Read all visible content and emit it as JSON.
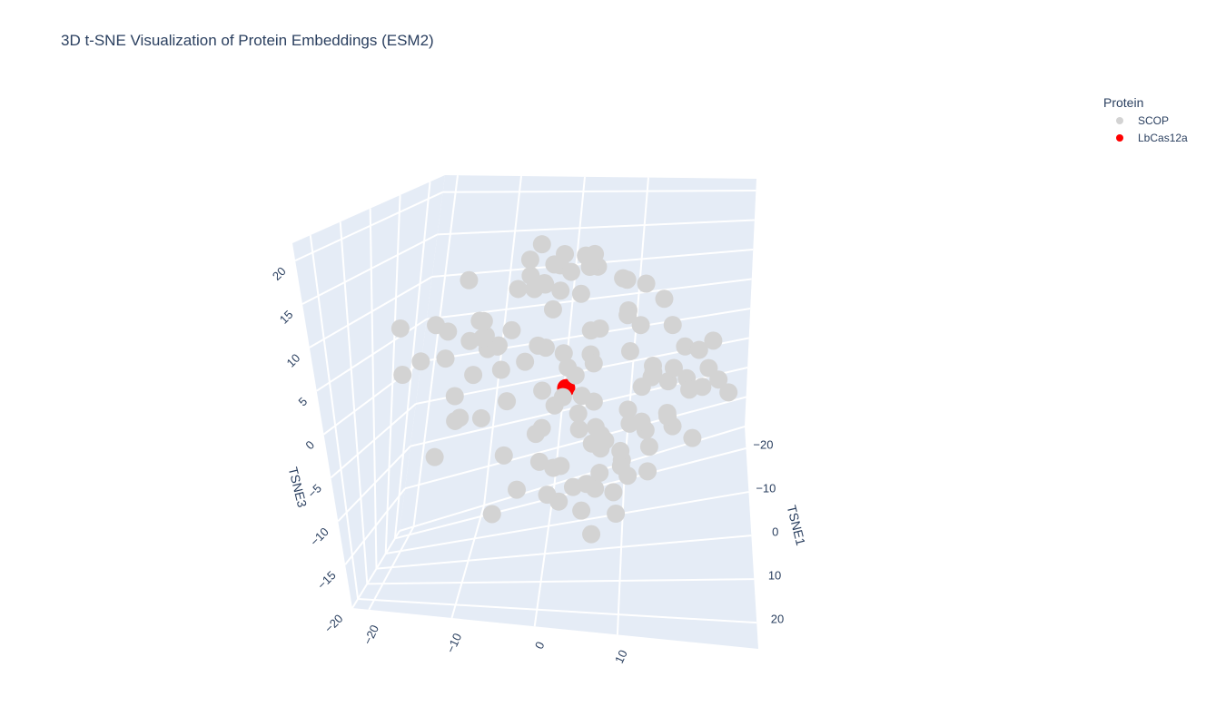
{
  "chart_data": {
    "type": "scatter3d",
    "title": "3D t-SNE Visualization of Protein Embeddings (ESM2)",
    "legend_title": "Protein",
    "xlabel": "TSNE1",
    "zlabel": "TSNE3",
    "xlim": [
      -25,
      26
    ],
    "ylim": [
      -22,
      27
    ],
    "zlim": [
      -20,
      22
    ],
    "xticks": [
      {
        "value": -20,
        "label": "−20"
      },
      {
        "value": -10,
        "label": "−10"
      },
      0,
      10,
      20
    ],
    "yticks": [
      {
        "value": -20,
        "label": "−20"
      },
      {
        "value": -10,
        "label": "−10"
      },
      0,
      10
    ],
    "zticks": [
      {
        "value": -20,
        "label": "−20"
      },
      {
        "value": -15,
        "label": "−15"
      },
      {
        "value": -10,
        "label": "−10"
      },
      {
        "value": -5,
        "label": "−5"
      },
      0,
      5,
      10,
      15,
      20
    ],
    "series": [
      {
        "name": "SCOP",
        "color": "#d3d3d3",
        "x": [
          0,
          5,
          -8,
          10,
          -3,
          12,
          -6,
          2,
          8,
          -12,
          4,
          -2,
          9,
          -10,
          6,
          1,
          -5,
          11,
          -7,
          3,
          7,
          -4,
          2,
          -9,
          10,
          -1,
          5,
          -12,
          3,
          8,
          -6,
          9,
          1,
          -3,
          12,
          4,
          -8,
          6,
          -2,
          10,
          2,
          -7,
          11,
          0,
          -10,
          5,
          8,
          -4,
          13,
          -1,
          -5,
          3,
          7,
          -11,
          1,
          9,
          -3,
          6,
          -9,
          4,
          10,
          -6,
          2,
          8,
          -2,
          -12,
          5,
          0,
          11,
          -4,
          3,
          -9,
          6,
          1,
          -7,
          12,
          -1,
          9,
          -5,
          2,
          8,
          -3,
          0,
          11,
          -8,
          4,
          7,
          -10,
          3,
          -6,
          -1,
          10,
          -5,
          2,
          9,
          -7,
          4,
          -2,
          12,
          6,
          5,
          -11,
          3,
          -4,
          8,
          0,
          -9,
          7,
          -3,
          10,
          1,
          6,
          -6,
          12,
          -2,
          3,
          9,
          -8,
          5,
          -10
        ],
        "y": [
          5,
          8,
          2,
          -3,
          12,
          15,
          0,
          6,
          10,
          -6,
          3,
          -1,
          9,
          14,
          18,
          7,
          -8,
          4,
          11,
          1,
          -10,
          -12,
          20,
          22,
          6,
          2,
          -4,
          16,
          13,
          9,
          0,
          5,
          -2,
          8,
          17,
          -7,
          10,
          3,
          12,
          -5,
          7,
          -14,
          -15,
          24,
          21,
          4,
          -9,
          14,
          1,
          6,
          11,
          -3,
          19,
          -11,
          8,
          2,
          15,
          -6,
          5,
          9,
          -13,
          23,
          0,
          10,
          -1,
          13,
          18,
          4,
          7,
          -8,
          3,
          16,
          -4,
          12,
          6,
          -2,
          20,
          9,
          1,
          14,
          -16,
          25,
          5,
          -12,
          11,
          8,
          -5,
          17,
          2,
          10,
          4,
          -9,
          13,
          6,
          -3,
          19,
          0,
          7,
          -6,
          15,
          8,
          1,
          22,
          -10,
          12,
          5,
          -1,
          10,
          3,
          18,
          -7,
          6,
          14,
          2,
          -14,
          9,
          21,
          -2,
          11,
          4
        ],
        "z": [
          2,
          6,
          -3,
          8,
          4,
          -6,
          12,
          0,
          -10,
          5,
          -8,
          14,
          10,
          -2,
          3,
          -12,
          6,
          16,
          -5,
          1,
          9,
          -4,
          2,
          -1,
          18,
          -14,
          7,
          -8,
          11,
          -3,
          4,
          -9,
          13,
          15,
          6,
          -2,
          -12,
          0,
          9,
          11,
          -6,
          3,
          10,
          1,
          -4,
          17,
          -1,
          -9,
          7,
          12,
          13,
          -11,
          5,
          0,
          -7,
          8,
          2,
          -13,
          15,
          -5,
          6,
          4,
          -8,
          10,
          16,
          -10,
          -3,
          3,
          -14,
          8,
          11,
          9,
          -6,
          -4,
          14,
          2,
          -7,
          6,
          -11,
          1,
          4,
          -2,
          -15,
          -5,
          12,
          -9,
          7,
          5,
          19,
          -12,
          17,
          2,
          -6,
          -11,
          5,
          3,
          -4,
          -2,
          9,
          10,
          -3,
          10,
          6,
          13,
          -8,
          15,
          -7,
          -13,
          4,
          0,
          7,
          -1,
          12,
          -9,
          8,
          18,
          3,
          11,
          -6,
          -8
        ]
      },
      {
        "name": "LbCas12a",
        "color": "#ff0000",
        "x": [
          2
        ],
        "y": [
          4
        ],
        "z": [
          1
        ]
      }
    ]
  }
}
